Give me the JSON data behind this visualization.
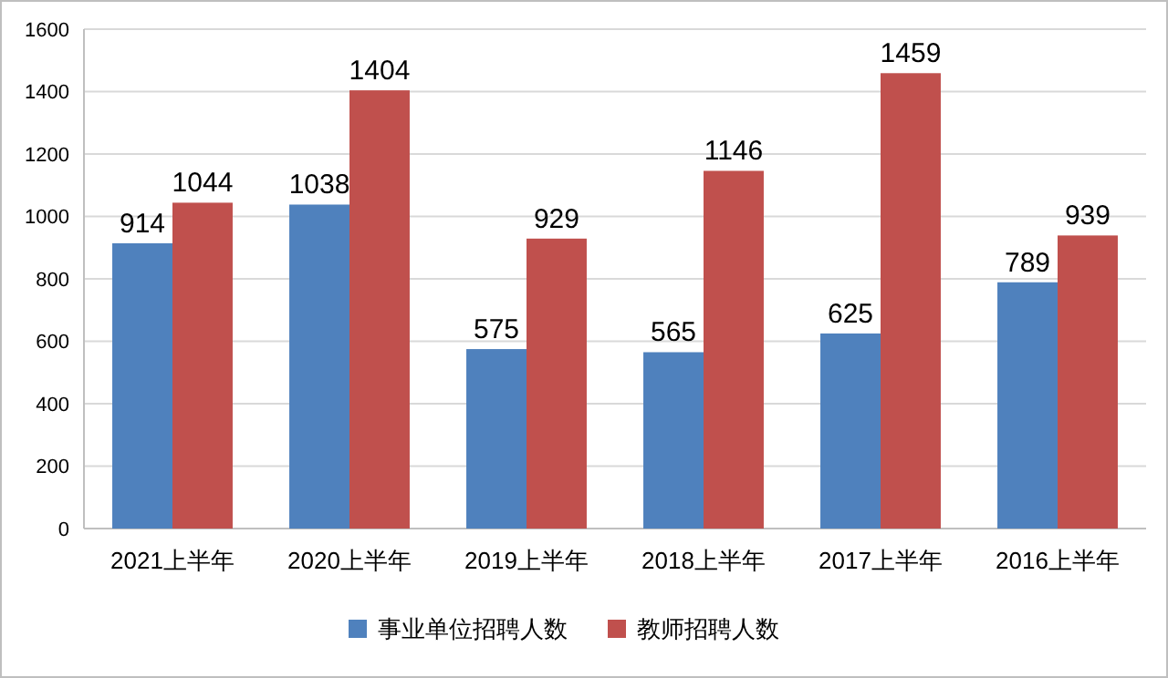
{
  "chart_data": {
    "type": "bar",
    "categories": [
      "2021上半年",
      "2020上半年",
      "2019上半年",
      "2018上半年",
      "2017上半年",
      "2016上半年"
    ],
    "series": [
      {
        "name": "事业单位招聘人数",
        "color": "#4f81bd",
        "values": [
          914,
          1038,
          575,
          565,
          625,
          789
        ]
      },
      {
        "name": "教师招聘人数",
        "color": "#c0504d",
        "values": [
          1044,
          1404,
          929,
          1146,
          1459,
          939
        ]
      }
    ],
    "ylim": [
      0,
      1600
    ],
    "yticks": [
      0,
      200,
      400,
      600,
      800,
      1000,
      1200,
      1400,
      1600
    ],
    "grid": "y",
    "legend": "bottom",
    "data_labels": true
  }
}
